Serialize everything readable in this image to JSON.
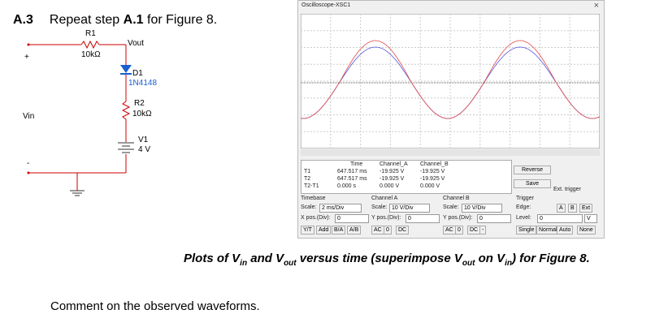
{
  "heading": {
    "number": "A.3",
    "text": "Repeat step ",
    "step": "A.1",
    "rest": " for Figure 8."
  },
  "circuit": {
    "r1_name": "R1",
    "r1_value": "10kΩ",
    "vout": "Vout",
    "plus": "+",
    "d1_name": "D1",
    "d1_part": "1N4148",
    "r2_name": "R2",
    "r2_value": "10kΩ",
    "vin": "Vin",
    "v1_name": "V1",
    "v1_value": "4 V",
    "minus": "-"
  },
  "scope": {
    "title": "Oscilloscope-XSC1",
    "readout": {
      "headers": [
        "Time",
        "Channel_A",
        "Channel_B"
      ],
      "rows": [
        {
          "label": "T1",
          "values": [
            "647.517 ms",
            "-19.925 V",
            "-19.925 V"
          ]
        },
        {
          "label": "T2",
          "values": [
            "647.517 ms",
            "-19.925 V",
            "-19.925 V"
          ]
        },
        {
          "label": "T2-T1",
          "values": [
            "0.000 s",
            "0.000 V",
            "0.000 V"
          ]
        }
      ]
    },
    "buttons": {
      "reverse": "Reverse",
      "save": "Save",
      "ext_trigger": "Ext. trigger"
    },
    "timebase": {
      "title": "Timebase",
      "scale_label": "Scale:",
      "scale": "2 ms/Div",
      "xpos_label": "X pos.(Div):",
      "xpos": "0",
      "modes": [
        "Y/T",
        "Add",
        "B/A",
        "A/B"
      ]
    },
    "channel_a": {
      "title": "Channel A",
      "scale_label": "Scale:",
      "scale": "10 V/Div",
      "ypos_label": "Y pos.(Div):",
      "ypos": "0",
      "coupling": [
        "AC",
        "0",
        "DC"
      ]
    },
    "channel_b": {
      "title": "Channel B",
      "scale_label": "Scale:",
      "scale": "10 V/Div",
      "ypos_label": "Y pos.(Div):",
      "ypos": "0",
      "coupling": [
        "AC",
        "0",
        "DC",
        "-"
      ]
    },
    "trigger": {
      "title": "Trigger",
      "edge_label": "Edge:",
      "sources": [
        "A",
        "B",
        "Ext"
      ],
      "level_label": "Level:",
      "level": "0",
      "level_unit": "V",
      "modes": [
        "Single",
        "Normal",
        "Auto",
        "None"
      ]
    }
  },
  "caption": [
    "Plots of V",
    "in",
    " and V",
    "out",
    " versus time (superimpose V",
    "out",
    " on V",
    "in",
    ") for Figure 8."
  ],
  "comment": "Comment on the observed waveforms."
}
